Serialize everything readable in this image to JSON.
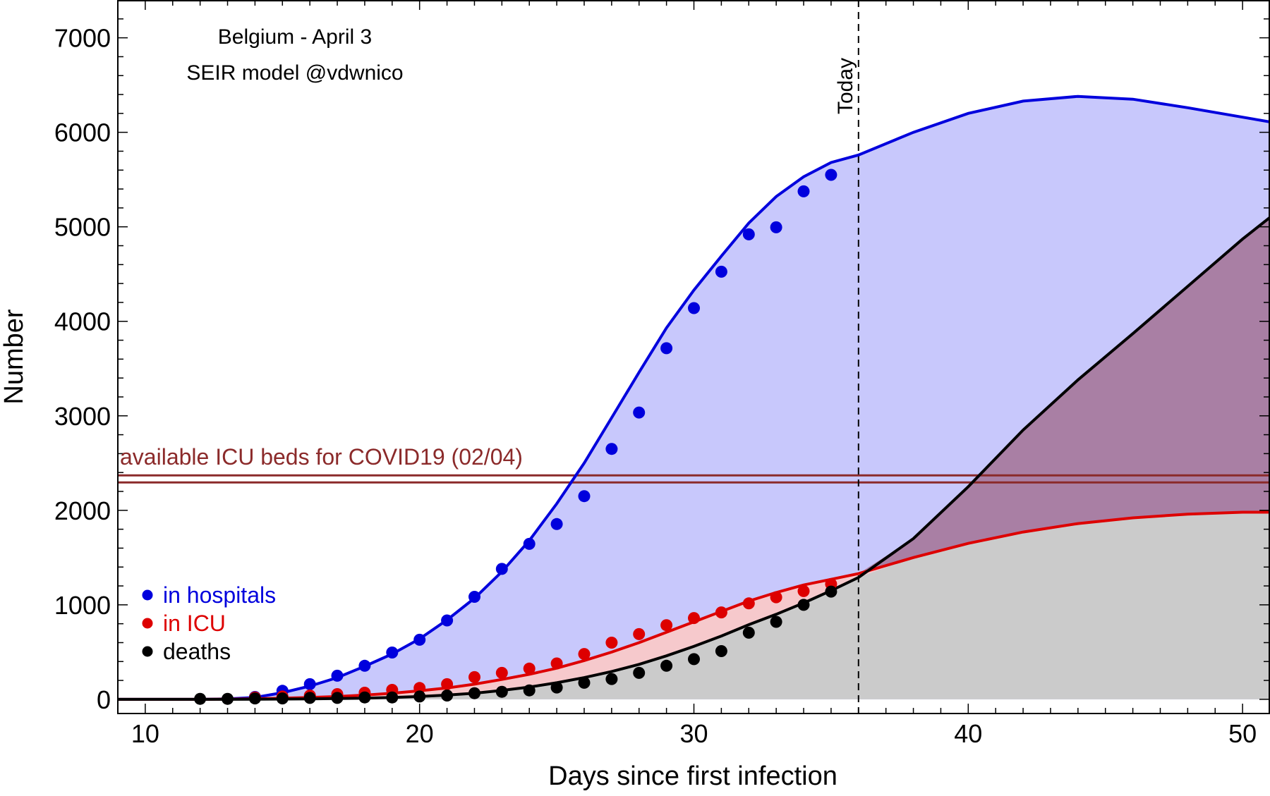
{
  "chart_data": {
    "type": "line",
    "title": "Belgium - April 3",
    "subtitle": "SEIR model @vdwnico",
    "xlabel": "Days since first infection",
    "ylabel": "Number",
    "xlim": [
      9,
      51
    ],
    "ylim": [
      -150,
      7400
    ],
    "x_ticks": [
      10,
      20,
      30,
      40,
      50
    ],
    "y_ticks": [
      0,
      1000,
      2000,
      3000,
      4000,
      5000,
      6000,
      7000
    ],
    "today": {
      "x": 36,
      "label": "Today"
    },
    "icu_capacity": {
      "y": 2320,
      "label": "available ICU beds for COVID19 (02/04)"
    },
    "legend": {
      "position": "bottom-left",
      "entries": [
        "in hospitals",
        "in ICU",
        "deaths"
      ]
    },
    "colors": {
      "hospitals": "#0000dd",
      "icu": "#dd0000",
      "deaths": "#000000",
      "capacity": "#8b2a2a",
      "hosp_fill": "#c8c8fc",
      "icu_fill": "#f6c9cc",
      "deaths_fill": "#cbcbcb",
      "overlap_fill": "#a97fa4"
    },
    "model": {
      "x": [
        9,
        12,
        13,
        14,
        15,
        16,
        17,
        18,
        19,
        20,
        21,
        22,
        23,
        24,
        25,
        26,
        27,
        28,
        29,
        30,
        31,
        32,
        33,
        34,
        35,
        36,
        38,
        40,
        42,
        44,
        46,
        48,
        50,
        51
      ],
      "hospitals": [
        0,
        0,
        5,
        20,
        70,
        140,
        230,
        350,
        480,
        640,
        840,
        1070,
        1350,
        1680,
        2070,
        2500,
        2980,
        3460,
        3930,
        4330,
        4690,
        5040,
        5320,
        5530,
        5680,
        5760,
        6000,
        6200,
        6330,
        6380,
        6350,
        6260,
        6160,
        6110
      ],
      "icu": [
        0,
        0,
        2,
        6,
        12,
        20,
        30,
        45,
        65,
        90,
        120,
        160,
        210,
        265,
        330,
        410,
        500,
        600,
        710,
        820,
        930,
        1040,
        1130,
        1210,
        1270,
        1330,
        1500,
        1650,
        1770,
        1860,
        1920,
        1960,
        1980,
        1980
      ],
      "deaths": [
        0,
        0,
        0,
        1,
        3,
        5,
        8,
        13,
        20,
        30,
        45,
        65,
        95,
        130,
        175,
        230,
        295,
        370,
        460,
        560,
        670,
        790,
        900,
        1020,
        1150,
        1290,
        1700,
        2250,
        2850,
        3380,
        3870,
        4370,
        4870,
        5100
      ]
    },
    "series": [
      {
        "name": "in hospitals",
        "x": [
          14,
          15,
          16,
          17,
          18,
          19,
          20,
          21,
          22,
          23,
          24,
          25,
          26,
          27,
          28,
          29,
          30,
          31,
          32,
          33,
          34,
          35
        ],
        "values": [
          25,
          90,
          160,
          250,
          355,
          495,
          630,
          835,
          1085,
          1380,
          1645,
          1855,
          2150,
          2650,
          3035,
          3715,
          4140,
          4525,
          4920,
          4995,
          5375,
          5550
        ]
      },
      {
        "name": "in ICU",
        "x": [
          14,
          15,
          16,
          17,
          18,
          19,
          20,
          21,
          22,
          23,
          24,
          25,
          26,
          27,
          28,
          29,
          30,
          31,
          32,
          33,
          34,
          35
        ],
        "values": [
          20,
          30,
          40,
          55,
          70,
          100,
          120,
          160,
          235,
          280,
          325,
          380,
          480,
          600,
          690,
          785,
          860,
          920,
          1015,
          1080,
          1145,
          1220
        ]
      },
      {
        "name": "deaths",
        "x": [
          12,
          13,
          14,
          15,
          16,
          17,
          18,
          19,
          20,
          21,
          22,
          23,
          24,
          25,
          26,
          27,
          28,
          29,
          30,
          31,
          32,
          33,
          34,
          35
        ],
        "values": [
          5,
          5,
          10,
          10,
          15,
          15,
          20,
          20,
          30,
          40,
          65,
          80,
          95,
          125,
          175,
          215,
          280,
          355,
          425,
          510,
          705,
          820,
          1000,
          1140
        ]
      }
    ]
  }
}
